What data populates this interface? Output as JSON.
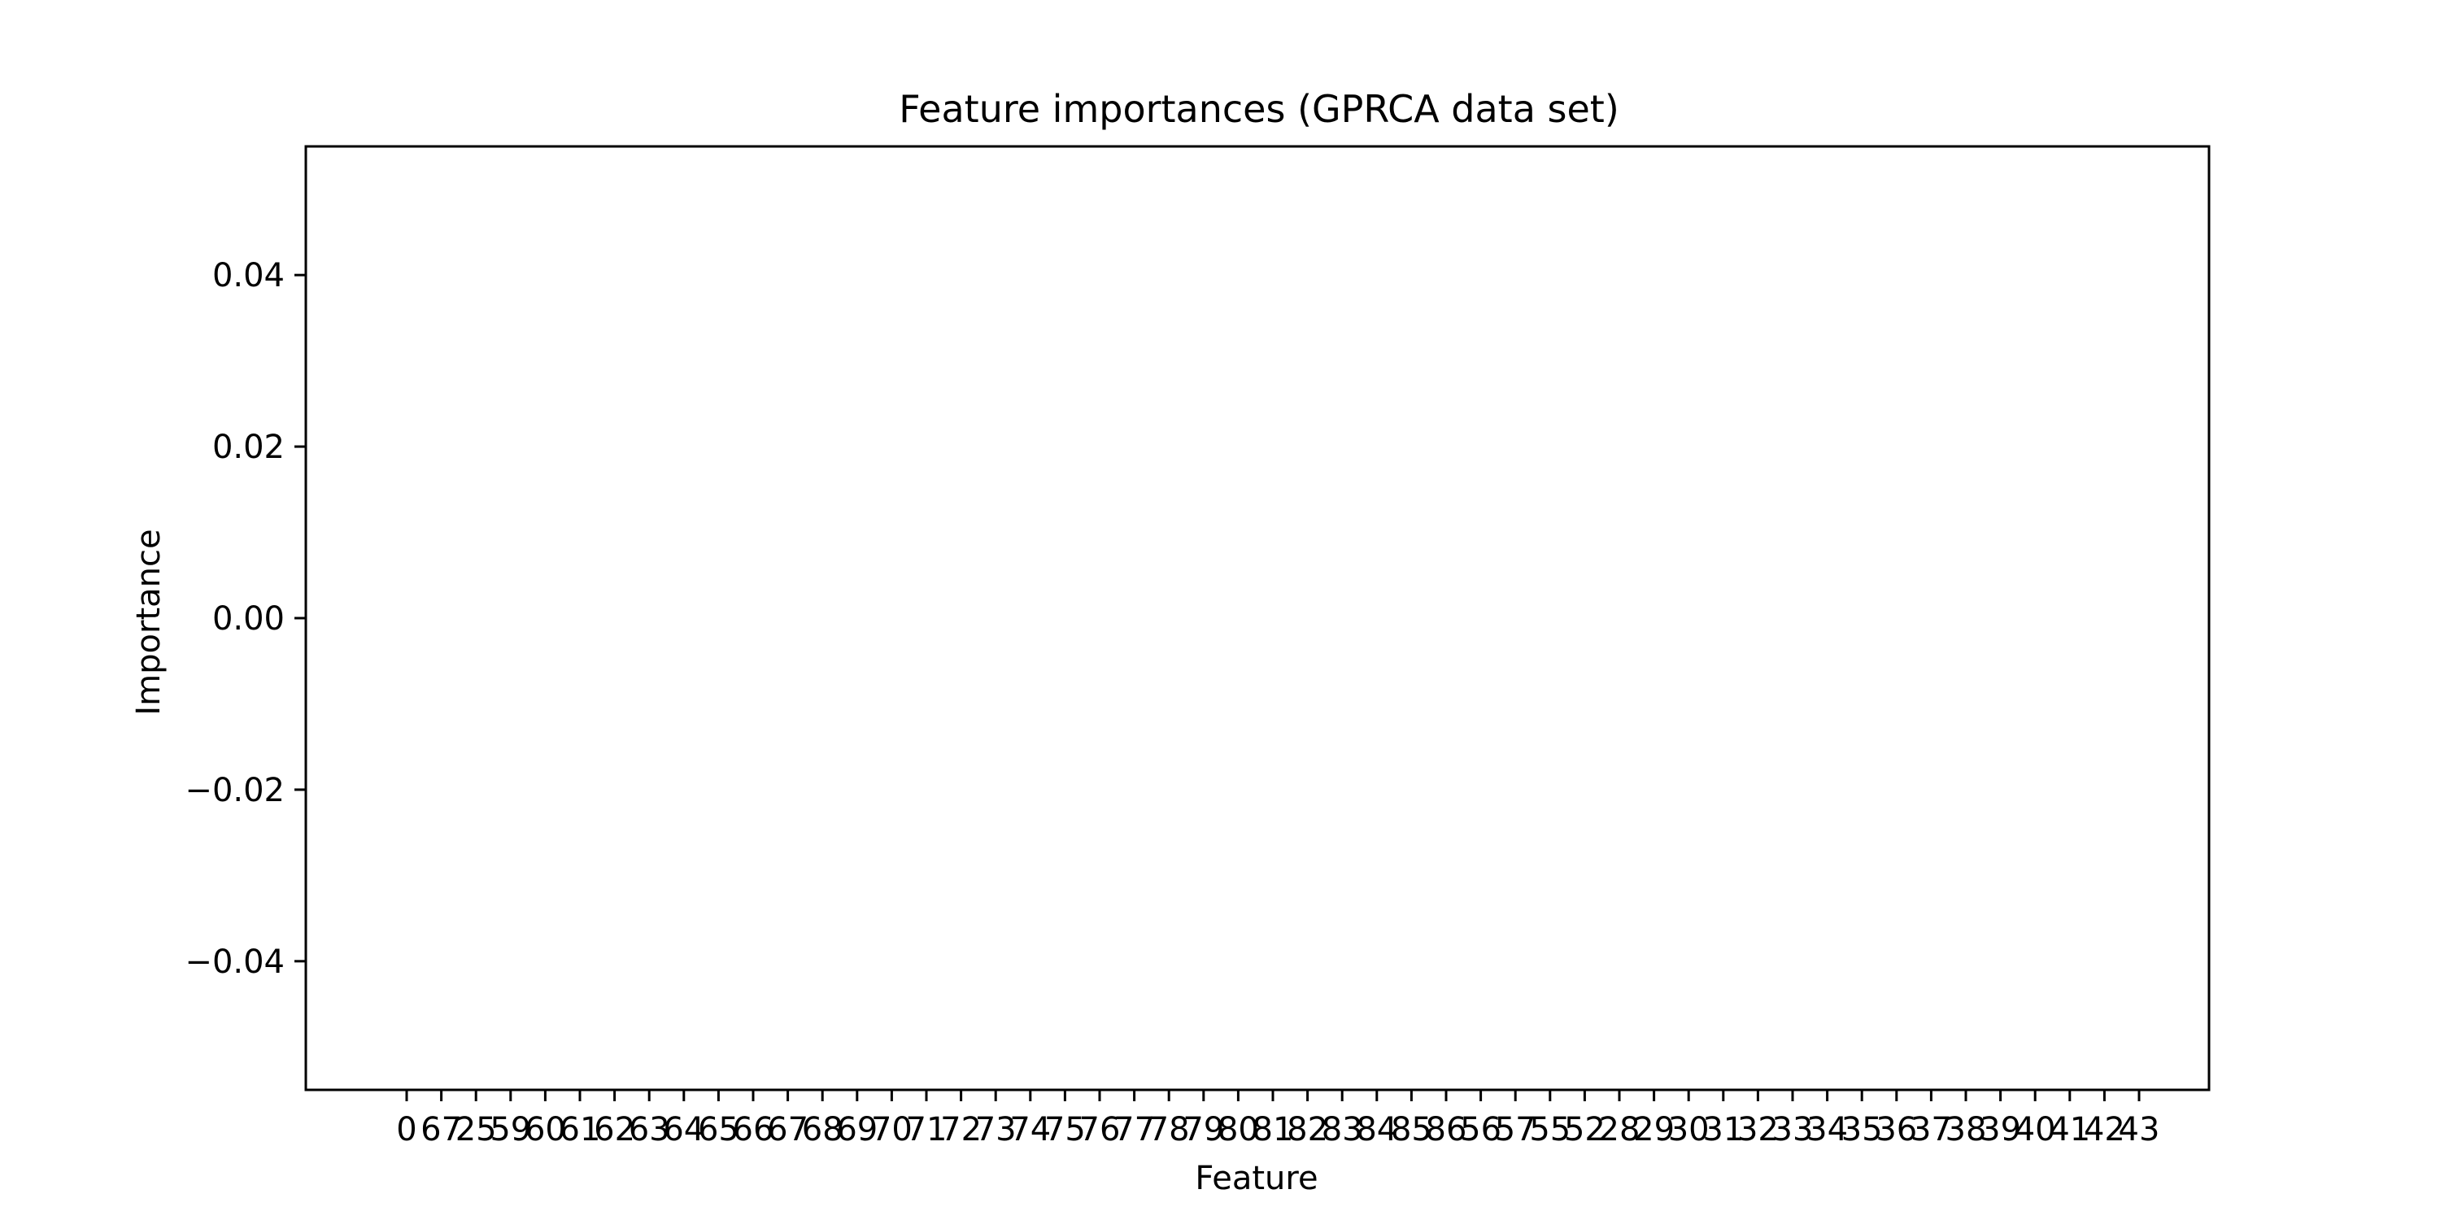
{
  "chart_data": {
    "type": "bar",
    "title": "Feature importances (GPRCA data set)",
    "xlabel": "Feature",
    "ylabel": "Importance",
    "ylim": [
      -0.055,
      0.055
    ],
    "yticks": [
      0.04,
      0.02,
      0.0,
      -0.02,
      -0.04
    ],
    "ytick_labels": [
      "0.04",
      "0.02",
      "0.00",
      "−0.02",
      "−0.04"
    ],
    "categories": [
      "0",
      "67",
      "25",
      "59",
      "60",
      "61",
      "62",
      "63",
      "64",
      "65",
      "66",
      "67",
      "68",
      "69",
      "70",
      "71",
      "72",
      "73",
      "74",
      "75",
      "76",
      "77",
      "78",
      "79",
      "80",
      "81",
      "82",
      "83",
      "84",
      "85",
      "86",
      "56",
      "57",
      "55",
      "52",
      "28",
      "29",
      "30",
      "31",
      "32",
      "33",
      "34",
      "35",
      "36",
      "37",
      "38",
      "39",
      "40",
      "41",
      "42",
      "43"
    ],
    "values": [
      0,
      0,
      0,
      0,
      0,
      0,
      0,
      0,
      0,
      0,
      0,
      0,
      0,
      0,
      0,
      0,
      0,
      0,
      0,
      0,
      0,
      0,
      0,
      0,
      0,
      0,
      0,
      0,
      0,
      0,
      0,
      0,
      0,
      0,
      0,
      0,
      0,
      0,
      0,
      0,
      0,
      0,
      0,
      0,
      0,
      0,
      0,
      0,
      0,
      0,
      0
    ],
    "grid": false,
    "colors": {
      "axes": "#000000",
      "background": "#ffffff",
      "bar": "#1f77b4"
    }
  }
}
